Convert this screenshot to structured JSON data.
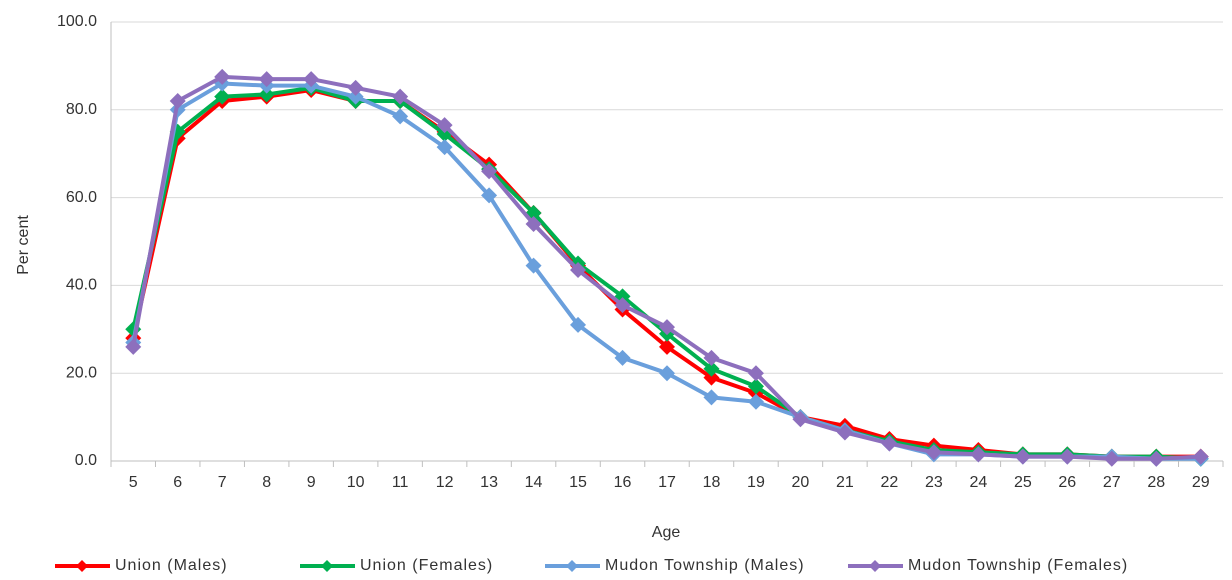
{
  "chart_data": {
    "type": "line",
    "x_label": "Age",
    "y_label": "Per cent",
    "categories": [
      5,
      6,
      7,
      8,
      9,
      10,
      11,
      12,
      13,
      14,
      15,
      16,
      17,
      18,
      19,
      20,
      21,
      22,
      23,
      24,
      25,
      26,
      27,
      28,
      29
    ],
    "series": [
      {
        "name": "Union (Males)",
        "color": "#ff0000",
        "values": [
          28,
          73.5,
          82,
          83,
          84.5,
          82,
          82,
          75,
          67.5,
          56.5,
          44.5,
          34.5,
          26,
          19,
          15.5,
          10,
          8,
          5,
          3.5,
          2.5,
          1.5,
          1.5,
          1,
          1,
          1
        ]
      },
      {
        "name": "Union (Females)",
        "color": "#00b050",
        "values": [
          30,
          75,
          83,
          83.5,
          85,
          82,
          82,
          74.5,
          66.5,
          56.5,
          45,
          37.5,
          29,
          21,
          17,
          10,
          7,
          4.5,
          2.5,
          2,
          1.5,
          1.5,
          1,
          1,
          0.5
        ]
      },
      {
        "name": "Mudon Township (Males)",
        "color": "#6a9fdc",
        "values": [
          27,
          80,
          86,
          85.5,
          85.5,
          83,
          78.5,
          71.5,
          60.5,
          44.5,
          31,
          23.5,
          20,
          14.5,
          13.5,
          10,
          7,
          4,
          1.5,
          1.5,
          1,
          1,
          1,
          0.5,
          0.5
        ]
      },
      {
        "name": "Mudon Township (Females)",
        "color": "#8d6fbd",
        "values": [
          26,
          82,
          87.5,
          87,
          87,
          85,
          83,
          76.5,
          66,
          54,
          43.5,
          35.5,
          30.5,
          23.5,
          20,
          9.5,
          6.5,
          4,
          2,
          1.5,
          1,
          1,
          0.5,
          0.5,
          1
        ]
      }
    ],
    "ylim": [
      0,
      100
    ],
    "yticks": [
      {
        "value": 0,
        "label": "0.0"
      },
      {
        "value": 20,
        "label": "20.0"
      },
      {
        "value": 40,
        "label": "40.0"
      },
      {
        "value": 60,
        "label": "60.0"
      },
      {
        "value": 80,
        "label": "80.0"
      },
      {
        "value": 100,
        "label": "100.0"
      }
    ],
    "grid": true,
    "legend": "bottom"
  }
}
